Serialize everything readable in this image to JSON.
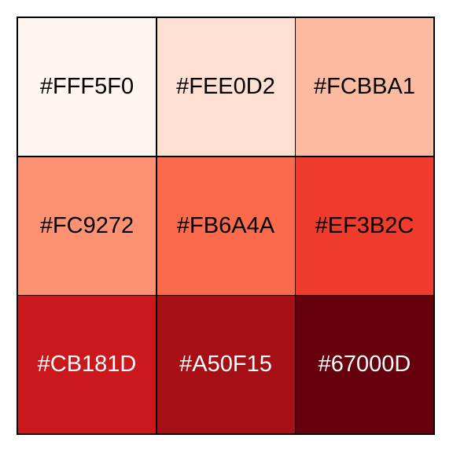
{
  "swatches": [
    {
      "label": "#FFF5F0",
      "color": "#FFF5F0",
      "text_color": "#000000"
    },
    {
      "label": "#FEE0D2",
      "color": "#FEE0D2",
      "text_color": "#000000"
    },
    {
      "label": "#FCBBA1",
      "color": "#FCBBA1",
      "text_color": "#000000"
    },
    {
      "label": "#FC9272",
      "color": "#FC9272",
      "text_color": "#000000"
    },
    {
      "label": "#FB6A4A",
      "color": "#FB6A4A",
      "text_color": "#000000"
    },
    {
      "label": "#EF3B2C",
      "color": "#EF3B2C",
      "text_color": "#000000"
    },
    {
      "label": "#CB181D",
      "color": "#CB181D",
      "text_color": "#FFFFFF"
    },
    {
      "label": "#A50F15",
      "color": "#A50F15",
      "text_color": "#FFFFFF"
    },
    {
      "label": "#67000D",
      "color": "#67000D",
      "text_color": "#FFFFFF"
    }
  ]
}
